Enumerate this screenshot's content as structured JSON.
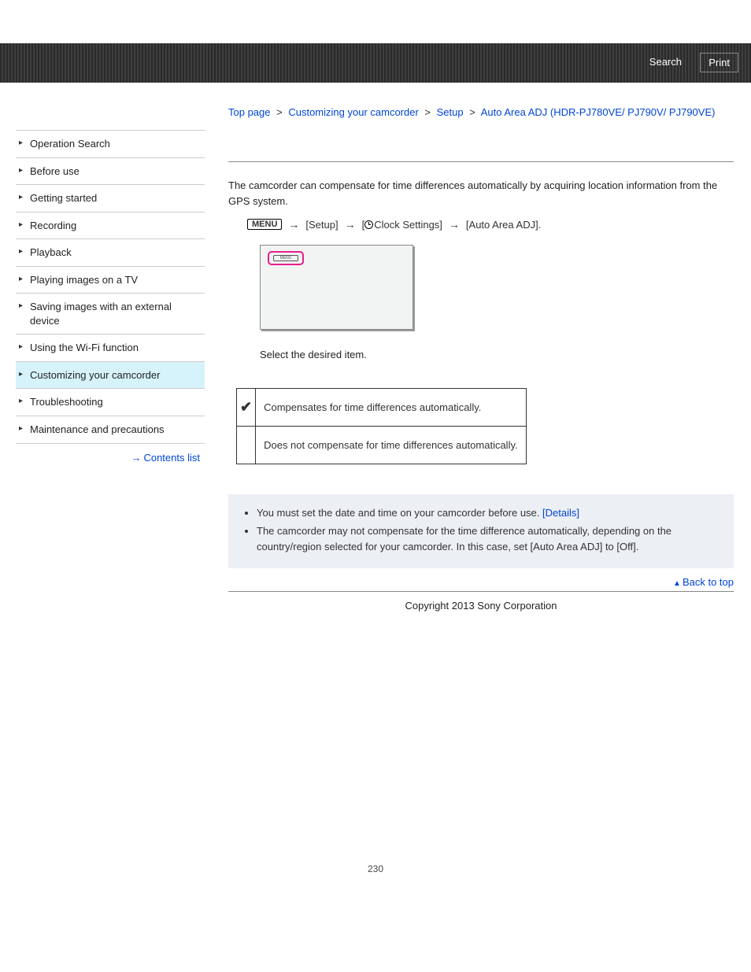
{
  "header": {
    "search": "Search",
    "print": "Print"
  },
  "sidebar": {
    "items": [
      {
        "label": "Operation Search"
      },
      {
        "label": "Before use"
      },
      {
        "label": "Getting started"
      },
      {
        "label": "Recording"
      },
      {
        "label": "Playback"
      },
      {
        "label": "Playing images on a TV"
      },
      {
        "label": "Saving images with an external device"
      },
      {
        "label": "Using the Wi-Fi function"
      },
      {
        "label": "Customizing your camcorder"
      },
      {
        "label": "Troubleshooting"
      },
      {
        "label": "Maintenance and precautions"
      }
    ],
    "active_index": 8,
    "contents_link": "Contents list"
  },
  "breadcrumb": {
    "items": [
      "Top page",
      "Customizing your camcorder",
      "Setup",
      "Auto Area ADJ (HDR-PJ780VE/ PJ790V/ PJ790VE)"
    ],
    "sep": ">"
  },
  "content": {
    "intro": "The camcorder can compensate for time differences automatically by acquiring location information from the GPS system.",
    "menu_path": {
      "menu_label": "MENU",
      "step1": "[Setup]",
      "step2_prefix": "[",
      "step2_text": "Clock Settings]",
      "step3": "[Auto Area ADJ].",
      "screen_menu_text": "MENU"
    },
    "select_text": "Select the desired item.",
    "table": {
      "row1": "Compensates for time differences automatically.",
      "row2": "Does not compensate for time differences automatically."
    },
    "notes": {
      "n1a": "You must set the date and time on your camcorder before use. ",
      "n1b": "[Details]",
      "n2": "The camcorder may not compensate for the time difference automatically, depending on the country/region selected for your camcorder. In this case, set [Auto Area ADJ] to [Off]."
    },
    "back_to_top": "Back to top",
    "copyright": "Copyright 2013 Sony Corporation",
    "page_number": "230"
  },
  "colors": {
    "link": "#0046d5",
    "highlight": "#e91e8c",
    "sidebar_active": "#d6f3fb",
    "notes_bg": "#eceff4"
  }
}
